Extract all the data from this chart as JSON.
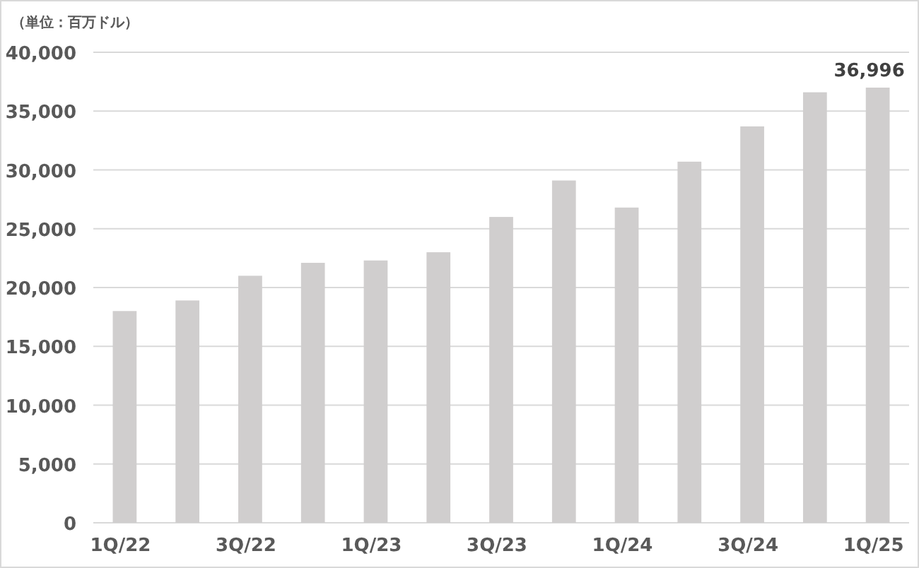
{
  "chart_data": {
    "type": "bar",
    "ylabel": "（単位：百万ドル）",
    "categories": [
      "1Q/22",
      null,
      "3Q/22",
      null,
      "1Q/23",
      null,
      "3Q/23",
      null,
      "1Q/24",
      null,
      "3Q/24",
      null,
      "1Q/25"
    ],
    "values": [
      18000,
      18900,
      21000,
      22100,
      22300,
      23000,
      26000,
      29100,
      26800,
      30700,
      33700,
      36600,
      36996
    ],
    "value_labels": [
      null,
      null,
      null,
      null,
      null,
      null,
      null,
      null,
      null,
      null,
      null,
      null,
      "36,996"
    ],
    "color": "#d0cece",
    "ylim": [
      0,
      40000
    ],
    "yticks": [
      {
        "value": 0,
        "label": "0"
      },
      {
        "value": 5000,
        "label": "5,000"
      },
      {
        "value": 10000,
        "label": "10,000"
      },
      {
        "value": 15000,
        "label": "15,000"
      },
      {
        "value": 20000,
        "label": "20,000"
      },
      {
        "value": 25000,
        "label": "25,000"
      },
      {
        "value": 30000,
        "label": "30,000"
      },
      {
        "value": 35000,
        "label": "35,000"
      },
      {
        "value": 40000,
        "label": "40,000"
      }
    ],
    "grid": "y"
  }
}
